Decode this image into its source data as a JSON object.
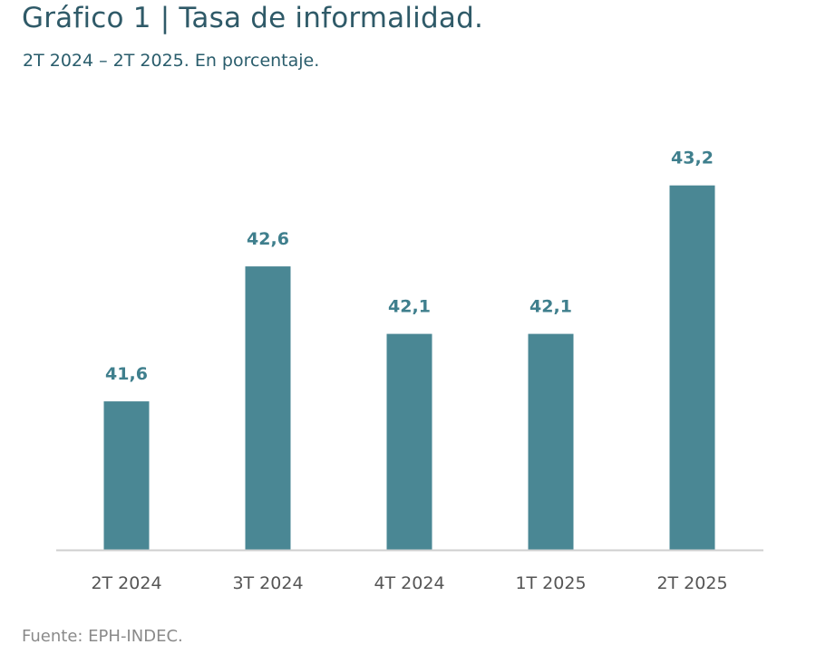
{
  "chart_data": {
    "type": "bar",
    "title": "Gráfico 1 | Tasa de informalidad.",
    "subtitle": "2T 2024 – 2T 2025. En porcentaje.",
    "categories": [
      "2T 2024",
      "3T 2024",
      "4T 2024",
      "1T 2025",
      "2T 2025"
    ],
    "values": [
      41.6,
      42.6,
      42.1,
      42.1,
      43.2
    ],
    "data_labels": [
      "41,6",
      "42,6",
      "42,1",
      "42,1",
      "43,2"
    ],
    "xlabel": "",
    "ylabel": "",
    "ylim": [
      40.5,
      43.5
    ],
    "grid": false,
    "bar_color": "#4a8794",
    "source": "Fuente: EPH-INDEC."
  }
}
